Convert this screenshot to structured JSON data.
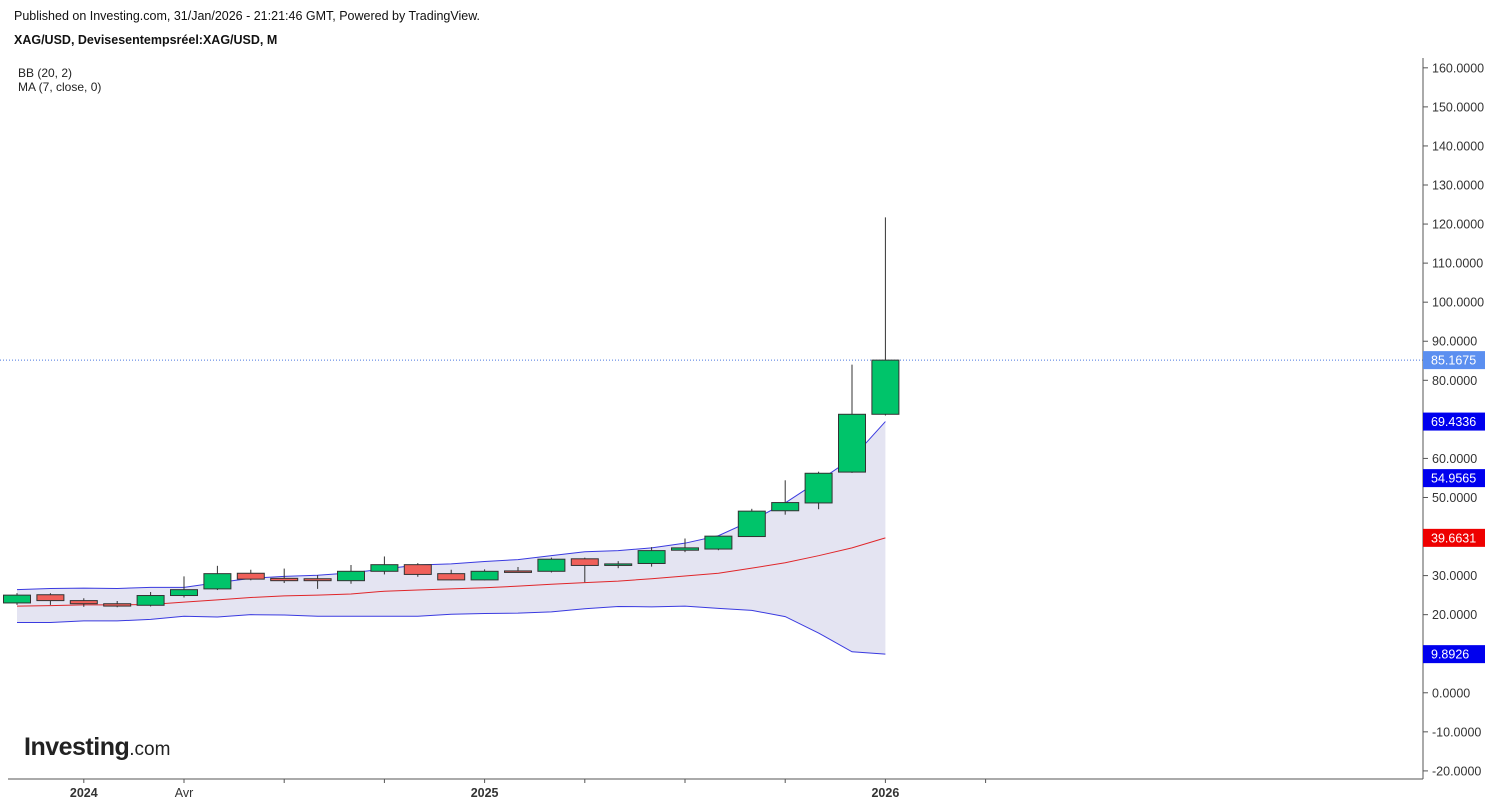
{
  "header": {
    "published": "Published on Investing.com, 31/Jan/2026 - 21:21:46 GMT, Powered by TradingView.",
    "symbol": "XAG/USD, Devisesentempsréel:XAG/USD, M"
  },
  "indicators": {
    "bb": "BB (20, 2)",
    "ma": "MA (7, close, 0)"
  },
  "logo": {
    "main": "Investing",
    "suffix": ".com"
  },
  "colors": {
    "up": "#00c46a",
    "down": "#f0605a",
    "band_fill": "#e4e4f2",
    "band_line": "#3a3ae0",
    "ma_line": "#e0262a",
    "price_line": "#4a78e0"
  },
  "chart_data": {
    "type": "candlestick",
    "title": "",
    "xlabel": "",
    "ylabel": "",
    "ylim": [
      -22,
      162
    ],
    "yticks": [
      "160.0000",
      "150.0000",
      "140.0000",
      "130.0000",
      "120.0000",
      "110.0000",
      "100.0000",
      "90.0000",
      "80.0000",
      "60.0000",
      "50.0000",
      "30.0000",
      "20.0000",
      "0.0000",
      "-10.0000",
      "-20.0000"
    ],
    "ytick_values": [
      160,
      150,
      140,
      130,
      120,
      110,
      100,
      90,
      80,
      60,
      50,
      30,
      20,
      0,
      -10,
      -20
    ],
    "xticks": [
      {
        "label": "2024",
        "i": 2
      },
      {
        "label": "Avr",
        "i": 5
      },
      {
        "label": "",
        "i": 8
      },
      {
        "label": "",
        "i": 11
      },
      {
        "label": "2025",
        "i": 14
      },
      {
        "label": "",
        "i": 17
      },
      {
        "label": "",
        "i": 20
      },
      {
        "label": "",
        "i": 23
      },
      {
        "label": "2026",
        "i": 26
      },
      {
        "label": "",
        "i": 29
      }
    ],
    "grid": false,
    "candles": [
      {
        "o": 23.0,
        "h": 25.5,
        "l": 22.5,
        "c": 25.0
      },
      {
        "o": 25.1,
        "h": 25.5,
        "l": 22.5,
        "c": 23.6
      },
      {
        "o": 23.6,
        "h": 24.2,
        "l": 22.0,
        "c": 22.8
      },
      {
        "o": 22.8,
        "h": 23.5,
        "l": 21.9,
        "c": 22.2
      },
      {
        "o": 22.4,
        "h": 25.8,
        "l": 22.1,
        "c": 24.9
      },
      {
        "o": 24.9,
        "h": 29.8,
        "l": 24.4,
        "c": 26.4
      },
      {
        "o": 26.6,
        "h": 32.5,
        "l": 26.3,
        "c": 30.5
      },
      {
        "o": 30.6,
        "h": 31.5,
        "l": 28.8,
        "c": 29.1
      },
      {
        "o": 29.3,
        "h": 31.8,
        "l": 28.1,
        "c": 28.7
      },
      {
        "o": 29.2,
        "h": 30.1,
        "l": 26.6,
        "c": 28.7
      },
      {
        "o": 28.7,
        "h": 32.7,
        "l": 27.9,
        "c": 31.1
      },
      {
        "o": 31.1,
        "h": 34.9,
        "l": 30.3,
        "c": 32.8
      },
      {
        "o": 32.8,
        "h": 33.2,
        "l": 29.7,
        "c": 30.3
      },
      {
        "o": 30.5,
        "h": 31.5,
        "l": 28.8,
        "c": 28.9
      },
      {
        "o": 28.9,
        "h": 31.6,
        "l": 28.8,
        "c": 31.1
      },
      {
        "o": 31.2,
        "h": 32.2,
        "l": 30.9,
        "c": 31.1
      },
      {
        "o": 31.1,
        "h": 34.6,
        "l": 30.8,
        "c": 34.2
      },
      {
        "o": 34.3,
        "h": 34.6,
        "l": 28.3,
        "c": 32.6
      },
      {
        "o": 32.6,
        "h": 33.7,
        "l": 31.9,
        "c": 33.0
      },
      {
        "o": 33.1,
        "h": 37.3,
        "l": 32.3,
        "c": 36.4
      },
      {
        "o": 36.5,
        "h": 39.5,
        "l": 36.0,
        "c": 37.1
      },
      {
        "o": 36.8,
        "h": 40.2,
        "l": 36.5,
        "c": 40.1
      },
      {
        "o": 40.0,
        "h": 47.1,
        "l": 39.9,
        "c": 46.5
      },
      {
        "o": 46.6,
        "h": 54.4,
        "l": 45.6,
        "c": 48.7
      },
      {
        "o": 48.6,
        "h": 56.6,
        "l": 47.0,
        "c": 56.2
      },
      {
        "o": 56.5,
        "h": 84.0,
        "l": 56.3,
        "c": 71.3
      },
      {
        "o": 71.3,
        "h": 121.7,
        "l": 71.0,
        "c": 85.1675
      }
    ],
    "bb_upper": [
      26.4,
      26.7,
      26.8,
      26.7,
      27.0,
      27.0,
      28.2,
      29.3,
      29.8,
      30.1,
      30.7,
      31.7,
      32.7,
      33.0,
      33.6,
      34.1,
      35.1,
      36.1,
      36.4,
      37.1,
      38.3,
      40.2,
      44.1,
      48.6,
      54.2,
      60.0,
      69.4336
    ],
    "bb_mid": [
      22.2,
      22.3,
      22.5,
      22.5,
      22.6,
      23.2,
      23.8,
      24.4,
      24.8,
      25.0,
      25.3,
      26.0,
      26.3,
      26.6,
      26.9,
      27.3,
      27.8,
      28.2,
      28.6,
      29.2,
      29.9,
      30.6,
      31.9,
      33.3,
      35.1,
      37.1,
      39.6631
    ],
    "bb_lower": [
      18.0,
      18.0,
      18.4,
      18.4,
      18.8,
      19.6,
      19.4,
      20.0,
      19.9,
      19.6,
      19.6,
      19.6,
      19.6,
      20.1,
      20.3,
      20.4,
      20.7,
      21.5,
      22.1,
      22.0,
      22.2,
      21.6,
      21.1,
      19.5,
      15.3,
      10.5,
      9.8926
    ],
    "price_line": 85.1675,
    "price_labels": [
      {
        "text": "85.1675",
        "value": 85.1675,
        "color": "#5b8ff0"
      },
      {
        "text": "69.4336",
        "value": 69.4336,
        "color": "#0000ee"
      },
      {
        "text": "54.9565",
        "value": 54.9565,
        "color": "#0000ee"
      },
      {
        "text": "39.6631",
        "value": 39.6631,
        "color": "#ee0000"
      },
      {
        "text": "9.8926",
        "value": 9.8926,
        "color": "#0000ee"
      }
    ]
  }
}
